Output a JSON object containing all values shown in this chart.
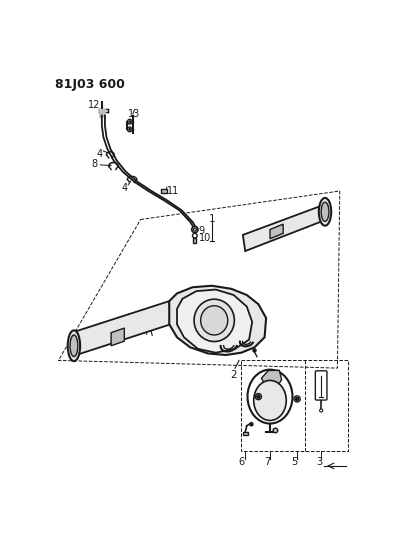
{
  "title": "81J03 600",
  "bg_color": "#ffffff",
  "line_color": "#1a1a1a",
  "fig_width": 3.93,
  "fig_height": 5.33,
  "dpi": 100,
  "axle_color": "#e8e8e8",
  "axle_dark": "#c0c0c0"
}
